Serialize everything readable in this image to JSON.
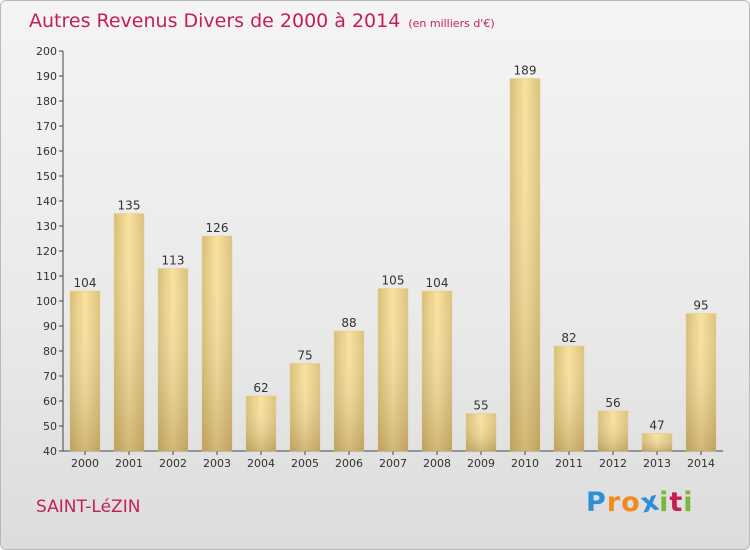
{
  "header": {
    "title": "Autres Revenus Divers de 2000 à 2014",
    "subtitle": "(en milliers d'€)"
  },
  "location": "SAINT-LéZIN",
  "logo": {
    "text": "Proxiti",
    "letters": [
      "P",
      "r",
      "o",
      "x",
      "i",
      "t",
      "i"
    ]
  },
  "colors": {
    "title": "#c41f55",
    "bar_light": "#f6dd97",
    "bar_dark": "#c4a45c",
    "logo": [
      "#2d8fd6",
      "#f08a1c",
      "#f08a1c",
      "#2d8fd6",
      "#7ab83a",
      "#c41f55",
      "#7ab83a"
    ]
  },
  "chart_data": {
    "type": "bar",
    "categories": [
      "2000",
      "2001",
      "2002",
      "2003",
      "2004",
      "2005",
      "2006",
      "2007",
      "2008",
      "2009",
      "2010",
      "2011",
      "2012",
      "2013",
      "2014"
    ],
    "values": [
      104,
      135,
      113,
      126,
      62,
      75,
      88,
      105,
      104,
      55,
      189,
      82,
      56,
      47,
      95
    ],
    "ylim": [
      40,
      200
    ],
    "yticks": [
      40,
      50,
      60,
      70,
      80,
      90,
      100,
      110,
      120,
      130,
      140,
      150,
      160,
      170,
      180,
      190,
      200
    ],
    "grid": false,
    "xlabel": "",
    "ylabel": ""
  }
}
